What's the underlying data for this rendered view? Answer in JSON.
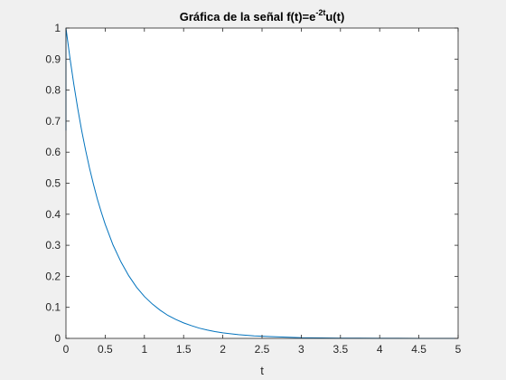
{
  "chart_data": {
    "type": "line",
    "title": {
      "prefix": "Gráfica de la señal f(t)=e",
      "superscript": "-2t",
      "suffix": "u(t)"
    },
    "xlabel": "t",
    "ylabel": "",
    "xlim": [
      0,
      5
    ],
    "ylim": [
      0,
      1
    ],
    "x_ticks": [
      0,
      0.5,
      1,
      1.5,
      2,
      2.5,
      3,
      3.5,
      4,
      4.5,
      5
    ],
    "x_tick_labels": [
      "0",
      "0.5",
      "1",
      "1.5",
      "2",
      "2.5",
      "3",
      "3.5",
      "4",
      "4.5",
      "5"
    ],
    "y_ticks": [
      0,
      0.1,
      0.2,
      0.3,
      0.4,
      0.5,
      0.6,
      0.7,
      0.8,
      0.9,
      1
    ],
    "y_tick_labels": [
      "0",
      "0.1",
      "0.2",
      "0.3",
      "0.4",
      "0.5",
      "0.6",
      "0.7",
      "0.8",
      "0.9",
      "1"
    ],
    "grid": false,
    "series": [
      {
        "color": "#0072BD",
        "x": [
          0,
          0,
          0.05,
          0.1,
          0.15,
          0.2,
          0.25,
          0.3,
          0.35,
          0.4,
          0.45,
          0.5,
          0.6,
          0.7,
          0.8,
          0.9,
          1,
          1.1,
          1.2,
          1.3,
          1.4,
          1.5,
          1.6,
          1.7,
          1.8,
          1.9,
          2,
          2.2,
          2.4,
          2.6,
          2.8,
          3,
          3.25,
          3.5,
          3.75,
          4,
          4.25,
          4.5,
          4.75,
          5
        ],
        "y": [
          0.67,
          1,
          0.905,
          0.819,
          0.741,
          0.67,
          0.607,
          0.549,
          0.497,
          0.449,
          0.407,
          0.368,
          0.301,
          0.247,
          0.202,
          0.165,
          0.135,
          0.111,
          0.091,
          0.074,
          0.061,
          0.05,
          0.041,
          0.033,
          0.027,
          0.022,
          0.018,
          0.012,
          0.008,
          0.006,
          0.004,
          0.002,
          0.0015,
          0.0009,
          0.0006,
          0.0003,
          0.0002,
          0.0001,
          0.0001,
          5e-05
        ]
      }
    ]
  }
}
